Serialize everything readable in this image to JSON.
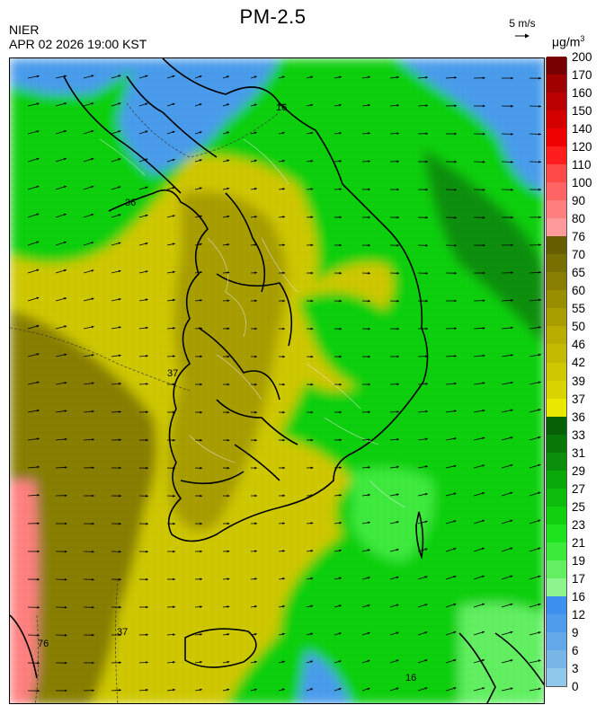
{
  "title": "PM-2.5",
  "organization": "NIER",
  "timestamp": "APR 02 2026 19:00 KST",
  "wind_reference": {
    "label": "5 m/s"
  },
  "unit": {
    "base": "μg/m",
    "exp": "3"
  },
  "colorbar": {
    "labels": [
      "0",
      "3",
      "6",
      "9",
      "12",
      "16",
      "17",
      "19",
      "21",
      "23",
      "25",
      "27",
      "29",
      "31",
      "33",
      "36",
      "37",
      "39",
      "42",
      "46",
      "50",
      "55",
      "60",
      "65",
      "70",
      "76",
      "80",
      "90",
      "100",
      "110",
      "120",
      "140",
      "150",
      "160",
      "170",
      "200"
    ],
    "colors": [
      "#8fc8ea",
      "#78b6e6",
      "#63a8e8",
      "#4f9cec",
      "#3e90ee",
      "#8cf58c",
      "#62f062",
      "#3cea3c",
      "#1ee41e",
      "#10d010",
      "#0cbd0c",
      "#0aa90a",
      "#098f09",
      "#077707",
      "#066106",
      "#e8e800",
      "#d9d300",
      "#cfc800",
      "#c4bb00",
      "#b8ad00",
      "#a89e00",
      "#988e00",
      "#887f00",
      "#776f00",
      "#665e00",
      "#ff9a9a",
      "#ff7f7f",
      "#ff6464",
      "#ff4a4a",
      "#ff1e1e",
      "#ee0000",
      "#d40000",
      "#bb0000",
      "#a00000",
      "#780000"
    ]
  },
  "contour_labels": [
    "16",
    "36",
    "37",
    "76"
  ],
  "colors": {
    "very_low": "#4a9cec",
    "low": "#10d010",
    "moderate": "#cfc800",
    "high_mod": "#887f00",
    "bad": "#ff8080"
  }
}
